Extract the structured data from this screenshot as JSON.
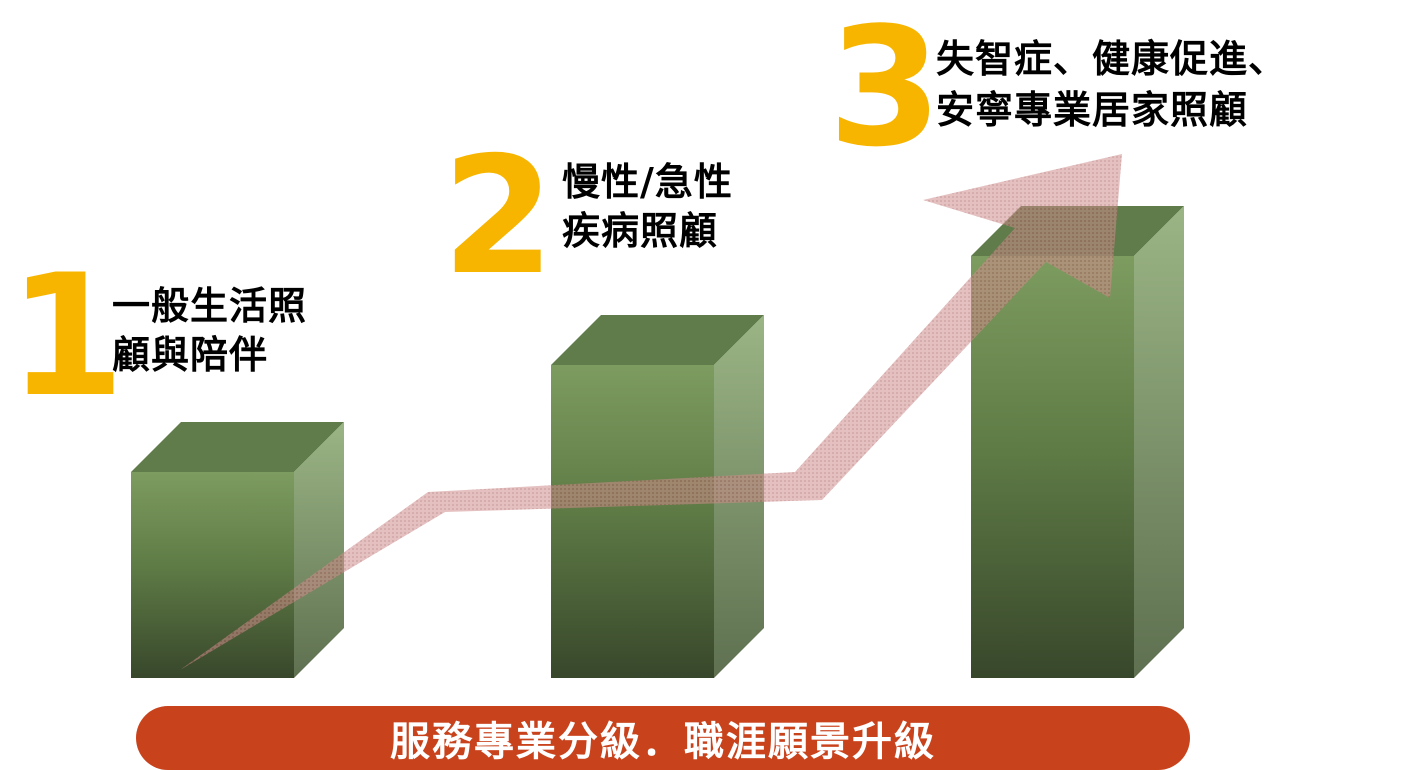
{
  "steps": [
    {
      "number": "1",
      "lines": [
        "一般生活照",
        "顧與陪伴"
      ]
    },
    {
      "number": "2",
      "lines": [
        "慢性/急性",
        "疾病照顧"
      ]
    },
    {
      "number": "3",
      "lines": [
        "失智症、健康促進、",
        "安寧專業居家照顧"
      ]
    }
  ],
  "banner": {
    "text": "服務專業分級．職涯願景升級"
  },
  "colors": {
    "number": "#f7b500",
    "label": "#000000",
    "bar_front_top": "#7a9a5e",
    "bar_front_bottom": "#3a4a2c",
    "bar_top": "#5e7a4a",
    "bar_side": "#93ad7c",
    "arrow": "#c98787",
    "banner": "#c8421c",
    "banner_text": "#ffffff"
  },
  "icons": [
    "rising-arrow-icon"
  ]
}
